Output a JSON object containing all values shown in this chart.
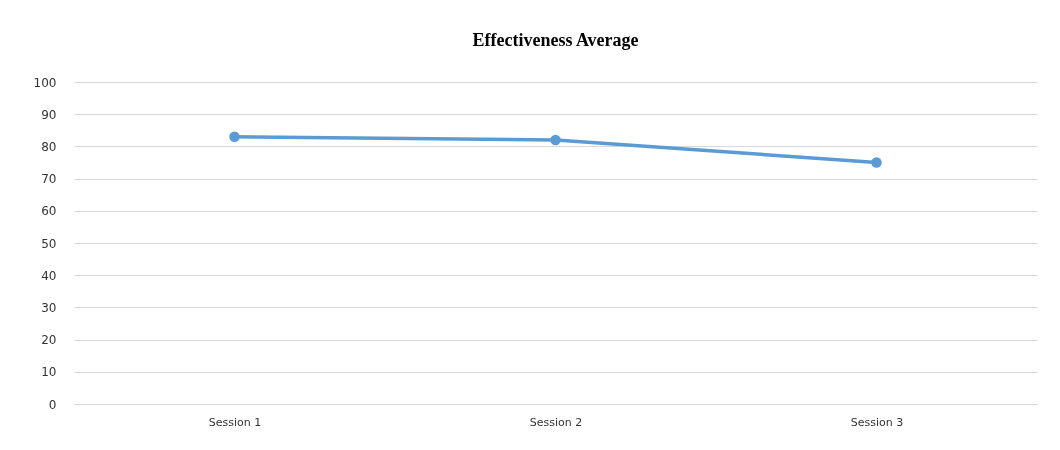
{
  "chart_data": {
    "type": "line",
    "title": "Effectiveness Average",
    "categories": [
      "Session 1",
      "Session 2",
      "Session 3"
    ],
    "series": [
      {
        "color": "#5b9bd5",
        "values": [
          83,
          82,
          75
        ]
      }
    ],
    "ylim": [
      0,
      100
    ],
    "yticks": [
      0,
      10,
      20,
      30,
      40,
      50,
      60,
      70,
      80,
      90,
      100
    ],
    "grid": "y",
    "marker": "circle",
    "line_style": "solid"
  }
}
